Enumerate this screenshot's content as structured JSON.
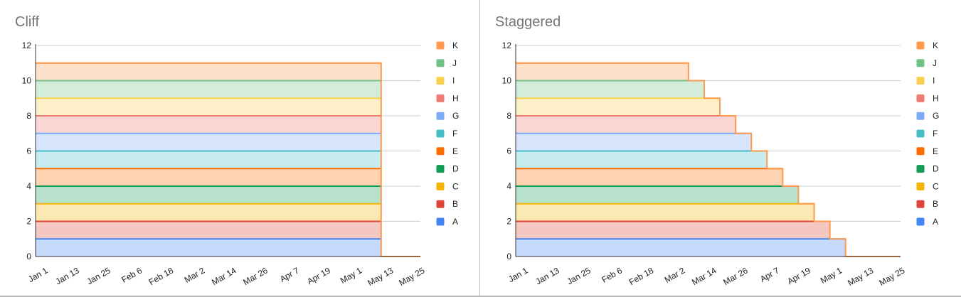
{
  "chart_data": [
    {
      "type": "area",
      "stacked": true,
      "title": "Cliff",
      "xlabel": "",
      "ylabel": "",
      "ylim": [
        0,
        12
      ],
      "yticks": [
        0,
        2,
        4,
        6,
        8,
        10,
        12
      ],
      "x_tick_labels": [
        "Jan 1",
        "Jan 13",
        "Jan 25",
        "Feb 6",
        "Feb 18",
        "Mar 2",
        "Mar 14",
        "Mar 26",
        "Apr 7",
        "Apr 19",
        "May 1",
        "May 13",
        "May 25"
      ],
      "x_end_days": [
        132,
        132,
        132,
        132,
        132,
        132,
        132,
        132,
        132,
        132,
        132
      ],
      "legend_position": "right",
      "grid": true,
      "series": [
        {
          "name": "A",
          "value": 1,
          "color": "#4285f4"
        },
        {
          "name": "B",
          "value": 1,
          "color": "#db4437"
        },
        {
          "name": "C",
          "value": 1,
          "color": "#f4b400"
        },
        {
          "name": "D",
          "value": 1,
          "color": "#0f9d58"
        },
        {
          "name": "E",
          "value": 1,
          "color": "#ff6d00"
        },
        {
          "name": "F",
          "value": 1,
          "color": "#46bdc6"
        },
        {
          "name": "G",
          "value": 1,
          "color": "#7baaf7"
        },
        {
          "name": "H",
          "value": 1,
          "color": "#f07b72"
        },
        {
          "name": "I",
          "value": 1,
          "color": "#fcd04f"
        },
        {
          "name": "J",
          "value": 1,
          "color": "#71c287"
        },
        {
          "name": "K",
          "value": 1,
          "color": "#ff994d"
        }
      ]
    },
    {
      "type": "area",
      "stacked": true,
      "title": "Staggered",
      "xlabel": "",
      "ylabel": "",
      "ylim": [
        0,
        12
      ],
      "yticks": [
        0,
        2,
        4,
        6,
        8,
        10,
        12
      ],
      "x_tick_labels": [
        "Jan 1",
        "Jan 13",
        "Jan 25",
        "Feb 6",
        "Feb 18",
        "Mar 2",
        "Mar 14",
        "Mar 26",
        "Apr 7",
        "Apr 19",
        "May 1",
        "May 13",
        "May 25"
      ],
      "x_end_days": [
        126,
        120,
        114,
        108,
        102,
        96,
        90,
        84,
        78,
        72,
        66
      ],
      "legend_position": "right",
      "grid": true,
      "series": [
        {
          "name": "A",
          "value": 1,
          "color": "#4285f4"
        },
        {
          "name": "B",
          "value": 1,
          "color": "#db4437"
        },
        {
          "name": "C",
          "value": 1,
          "color": "#f4b400"
        },
        {
          "name": "D",
          "value": 1,
          "color": "#0f9d58"
        },
        {
          "name": "E",
          "value": 1,
          "color": "#ff6d00"
        },
        {
          "name": "F",
          "value": 1,
          "color": "#46bdc6"
        },
        {
          "name": "G",
          "value": 1,
          "color": "#7baaf7"
        },
        {
          "name": "H",
          "value": 1,
          "color": "#f07b72"
        },
        {
          "name": "I",
          "value": 1,
          "color": "#fcd04f"
        },
        {
          "name": "J",
          "value": 1,
          "color": "#71c287"
        },
        {
          "name": "K",
          "value": 1,
          "color": "#ff994d"
        }
      ]
    }
  ]
}
